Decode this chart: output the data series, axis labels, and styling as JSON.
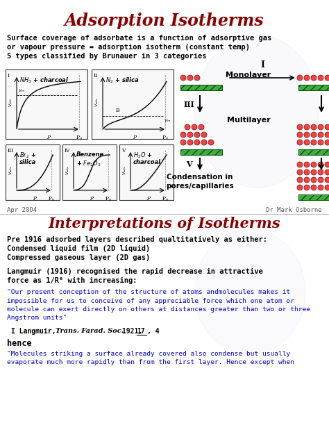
{
  "title1": "Adsorption Isotherms",
  "title2": "Interpretations of Isotherms",
  "bg_color": "#ffffff",
  "title_color": "#8b0000",
  "body_text_color": "#000000",
  "quote_color": "#0000cc",
  "section1_lines": [
    "Surface coverage of adsorbate is a function of adsorptive gas",
    "or vapour pressure = adsorption isotherm (constant temp)",
    "5 types classified by Brunauer in 3 categories"
  ],
  "section2_lines": [
    "Pre 1916 adsorbed layers described qualtitatively as either:",
    "Condensed liquid film (2D liquid)",
    "Compressed gaseous layer (2D gas)",
    "",
    "Langmuir (1916) recognised the rapid decrease in attractive",
    "force as 1/R⁶ with increasing:"
  ],
  "footer_left": "Apr 2004",
  "footer_right": "Dr Mark Osborne"
}
